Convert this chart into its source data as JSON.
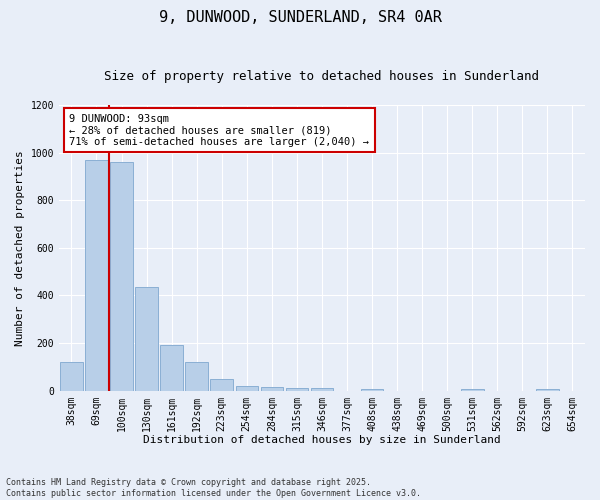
{
  "title": "9, DUNWOOD, SUNDERLAND, SR4 0AR",
  "subtitle": "Size of property relative to detached houses in Sunderland",
  "xlabel": "Distribution of detached houses by size in Sunderland",
  "ylabel": "Number of detached properties",
  "categories": [
    "38sqm",
    "69sqm",
    "100sqm",
    "130sqm",
    "161sqm",
    "192sqm",
    "223sqm",
    "254sqm",
    "284sqm",
    "315sqm",
    "346sqm",
    "377sqm",
    "408sqm",
    "438sqm",
    "469sqm",
    "500sqm",
    "531sqm",
    "562sqm",
    "592sqm",
    "623sqm",
    "654sqm"
  ],
  "values": [
    120,
    970,
    960,
    435,
    190,
    120,
    48,
    20,
    15,
    10,
    10,
    0,
    8,
    0,
    0,
    0,
    8,
    0,
    0,
    8,
    0
  ],
  "bar_color": "#b8cfe8",
  "bar_edge_color": "#8aafd4",
  "vline_color": "#cc0000",
  "annotation_text": "9 DUNWOOD: 93sqm\n← 28% of detached houses are smaller (819)\n71% of semi-detached houses are larger (2,040) →",
  "annotation_box_color": "#ffffff",
  "annotation_box_edge": "#cc0000",
  "ylim": [
    0,
    1200
  ],
  "yticks": [
    0,
    200,
    400,
    600,
    800,
    1000,
    1200
  ],
  "background_color": "#e8eef8",
  "fig_background_color": "#e8eef8",
  "footer_line1": "Contains HM Land Registry data © Crown copyright and database right 2025.",
  "footer_line2": "Contains public sector information licensed under the Open Government Licence v3.0.",
  "title_fontsize": 11,
  "subtitle_fontsize": 9,
  "axis_fontsize": 8,
  "tick_fontsize": 7,
  "annotation_fontsize": 7.5
}
